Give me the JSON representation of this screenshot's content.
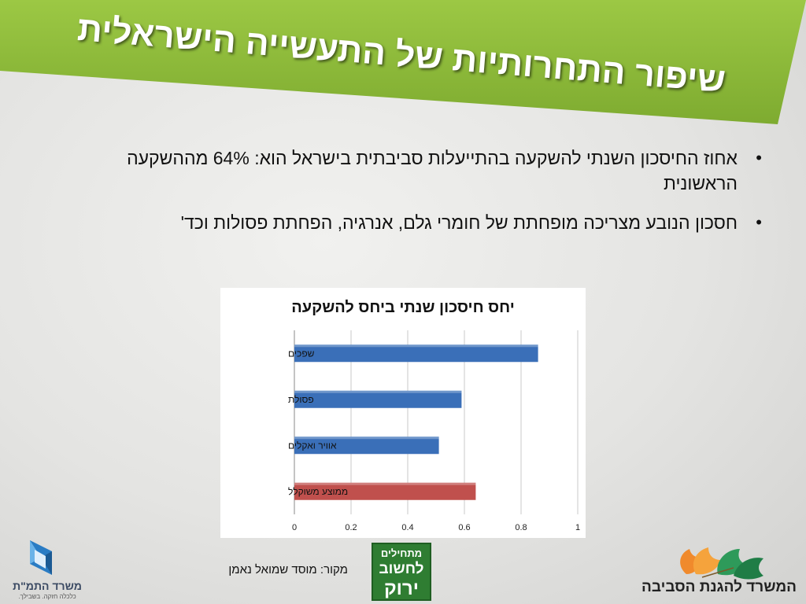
{
  "title": "שיפור התחרותיות של התעשייה הישראלית",
  "bullets": [
    "אחוז החיסכון השנתי להשקעה בהתייעלות סביבתית בישראל הוא: 64% מההשקעה הראשונית",
    "חסכון הנובע מצריכה מופחתת של חומרי גלם, אנרגיה, הפחתת פסולות וכד'"
  ],
  "source": "מקור: מוסד שמואל נאמן",
  "logos": {
    "left_name": "משרד התמ\"ת",
    "left_tagline": "כלכלה חזקה. בשבילך.",
    "middle_line1": "מתחילים",
    "middle_line2": "לחשוב",
    "middle_line3": "ירוק",
    "right_name": "המשרד להגנת הסביבה"
  },
  "colors": {
    "banner_green": "#8ab83a",
    "bar_blue": "#3a6fb8",
    "bar_red": "#c0504d"
  },
  "chart_data": {
    "type": "bar",
    "orientation": "horizontal",
    "title": "יחס חיסכון שנתי ביחס להשקעה",
    "categories": [
      "שפכים",
      "פסולת",
      "אוויר ואקלים",
      "ממוצע משוקלל"
    ],
    "values": [
      0.86,
      0.59,
      0.51,
      0.64
    ],
    "bar_colors": [
      "#3a6fb8",
      "#3a6fb8",
      "#3a6fb8",
      "#c0504d"
    ],
    "xlim": [
      0,
      1
    ],
    "xticks": [
      "0",
      "0.2",
      "0.4",
      "0.6",
      "0.8",
      "1"
    ],
    "grid": true,
    "legend": "none"
  }
}
